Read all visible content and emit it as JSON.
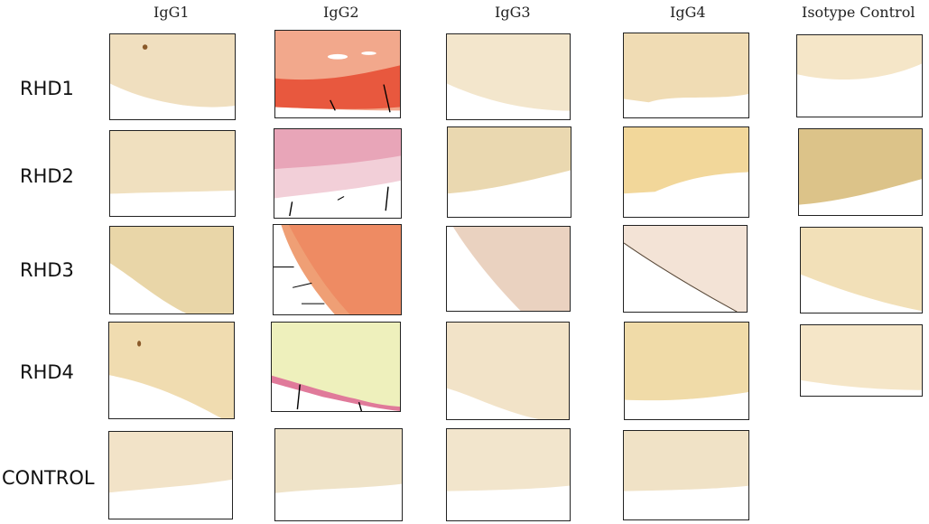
{
  "columns": [
    "IgG1",
    "IgG2",
    "IgG3",
    "IgG4",
    "Isotype Control"
  ],
  "rows": [
    "RHD1",
    "RHD2",
    "RHD3",
    "RHD4",
    "CONTROL"
  ]
}
